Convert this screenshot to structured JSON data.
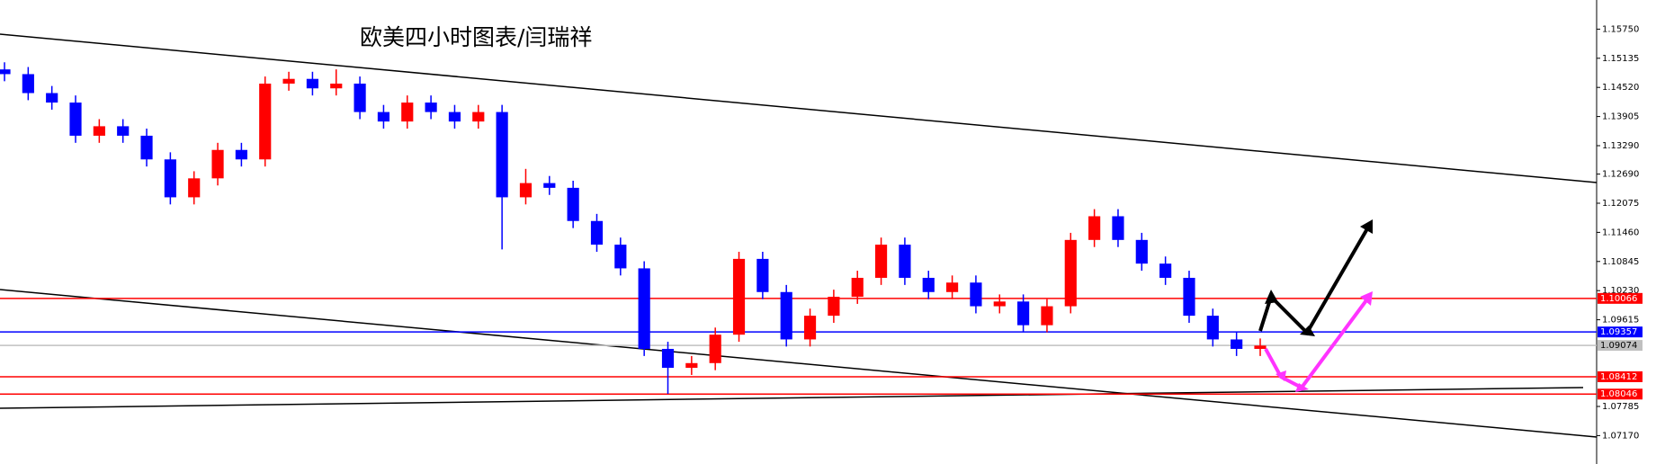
{
  "chart_data": {
    "type": "candlestick",
    "title": "欧美四小时图表/闫瑞祥",
    "up_color": "#ff0000",
    "down_color": "#0000ff",
    "open": [
      1.149,
      1.148,
      1.144,
      1.142,
      1.135,
      1.137,
      1.135,
      1.13,
      1.122,
      1.126,
      1.132,
      1.13,
      1.146,
      1.147,
      1.145,
      1.146,
      1.14,
      1.138,
      1.142,
      1.14,
      1.138,
      1.14,
      1.122,
      1.125,
      1.124,
      1.117,
      1.112,
      1.107,
      1.09,
      1.086,
      1.087,
      1.093,
      1.109,
      1.102,
      1.092,
      1.097,
      1.101,
      1.105,
      1.112,
      1.105,
      1.102,
      1.104,
      1.099,
      1.1,
      1.095,
      1.099,
      1.113,
      1.118,
      1.113,
      1.108,
      1.105,
      1.097,
      1.092,
      1.09
    ],
    "high": [
      1.1505,
      1.1495,
      1.1455,
      1.1435,
      1.1385,
      1.1385,
      1.1365,
      1.1315,
      1.1275,
      1.1335,
      1.1335,
      1.1475,
      1.1485,
      1.1485,
      1.149,
      1.1475,
      1.1415,
      1.1435,
      1.1435,
      1.1415,
      1.1415,
      1.1415,
      1.128,
      1.1265,
      1.1255,
      1.1185,
      1.1135,
      1.1085,
      1.0915,
      1.0885,
      1.0945,
      1.1105,
      1.1105,
      1.1035,
      1.0985,
      1.1025,
      1.1065,
      1.1135,
      1.1135,
      1.1065,
      1.1055,
      1.1055,
      1.1015,
      1.1015,
      1.1005,
      1.1145,
      1.1195,
      1.1195,
      1.1145,
      1.1095,
      1.1065,
      1.0985,
      1.0935,
      1.0922
    ],
    "low": [
      1.1465,
      1.1425,
      1.1405,
      1.1335,
      1.1335,
      1.1335,
      1.1285,
      1.1205,
      1.1205,
      1.1245,
      1.1285,
      1.1285,
      1.1445,
      1.1435,
      1.1435,
      1.1385,
      1.1365,
      1.1365,
      1.1385,
      1.1365,
      1.1365,
      1.111,
      1.1205,
      1.1225,
      1.1155,
      1.1105,
      1.1055,
      1.0885,
      1.0805,
      1.0845,
      1.0855,
      1.0915,
      1.1005,
      1.0905,
      1.0905,
      1.0955,
      1.0995,
      1.1035,
      1.1035,
      1.1005,
      1.1005,
      1.0975,
      1.0975,
      1.0935,
      1.0935,
      1.0975,
      1.1115,
      1.1115,
      1.1065,
      1.1035,
      1.0955,
      1.0905,
      1.0885,
      1.0885
    ],
    "close": [
      1.148,
      1.144,
      1.142,
      1.135,
      1.137,
      1.135,
      1.13,
      1.122,
      1.126,
      1.132,
      1.13,
      1.146,
      1.147,
      1.145,
      1.146,
      1.14,
      1.138,
      1.142,
      1.14,
      1.138,
      1.14,
      1.122,
      1.125,
      1.124,
      1.117,
      1.112,
      1.107,
      1.09,
      1.086,
      1.087,
      1.093,
      1.109,
      1.102,
      1.092,
      1.097,
      1.101,
      1.105,
      1.112,
      1.105,
      1.102,
      1.104,
      1.099,
      1.1,
      1.095,
      1.099,
      1.113,
      1.118,
      1.113,
      1.108,
      1.105,
      1.097,
      1.092,
      1.09,
      1.0907
    ],
    "ylim": [
      1.0657,
      1.16365
    ],
    "yticks": [
      {
        "value": 1.1575,
        "label": "1.15750"
      },
      1.15135,
      {
        "value": 1.1452,
        "label": "1.14520"
      },
      1.13905,
      {
        "value": 1.1329,
        "label": "1.13290"
      },
      {
        "value": 1.1269,
        "label": "1.12690"
      },
      1.12075,
      {
        "value": 1.1146,
        "label": "1.11460"
      },
      1.10845,
      {
        "value": 1.1023,
        "label": "1.10230"
      },
      1.09615,
      1.07785,
      {
        "value": 1.0717,
        "label": "1.07170"
      }
    ],
    "levels": [
      {
        "value": 1.10066,
        "color": "#ff0000"
      },
      {
        "value": 1.09357,
        "color": "#0000ff"
      },
      {
        "value": 1.09074,
        "color": "#c0c0c0"
      },
      {
        "value": 1.08412,
        "color": "#ff0000"
      },
      {
        "value": 1.08046,
        "color": "#ff0000"
      }
    ]
  }
}
